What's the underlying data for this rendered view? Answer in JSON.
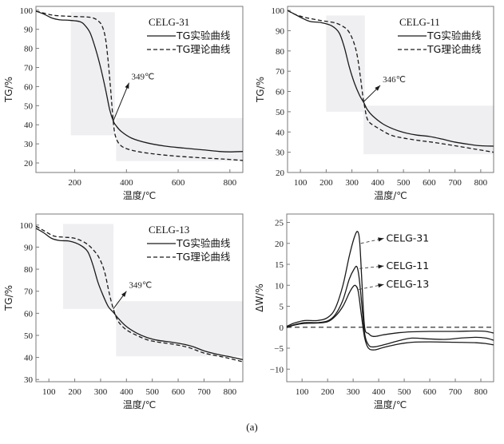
{
  "figure_caption": "(a)",
  "colors": {
    "line": "#1a1a1a",
    "shade": "#efeff1",
    "frame": "#7a7a7a"
  },
  "chart_data": [
    {
      "id": "celg31",
      "type": "line",
      "title": "CELG-31",
      "xlabel": "温度/℃",
      "ylabel": "TG/%",
      "xlim": [
        50,
        850
      ],
      "ylim": [
        15,
        102
      ],
      "xticks": [
        200,
        400,
        600,
        800
      ],
      "yticks": [
        20,
        30,
        40,
        50,
        60,
        70,
        80,
        90,
        100
      ],
      "grid": false,
      "legend": {
        "placement": "top-right",
        "entries": [
          "TG实验曲线",
          "TG理论曲线"
        ]
      },
      "shaded_regions": [
        {
          "x": [
            185,
            355
          ],
          "y": [
            34.5,
            99
          ]
        },
        {
          "x": [
            360,
            850
          ],
          "y": [
            21,
            43.5
          ]
        }
      ],
      "annotation": {
        "text": "349℃",
        "point": [
          349,
          42
        ],
        "arrow_to": [
          410,
          62
        ]
      },
      "series": [
        {
          "name": "TG实验曲线",
          "style": "solid",
          "x": [
            50,
            80,
            110,
            140,
            180,
            220,
            240,
            260,
            280,
            300,
            320,
            335,
            349,
            360,
            380,
            420,
            480,
            550,
            620,
            700,
            760,
            800,
            850
          ],
          "y": [
            99.5,
            98,
            96,
            95,
            94.7,
            94,
            92,
            88,
            80,
            70,
            58,
            48,
            42,
            39.5,
            36.5,
            33,
            30.5,
            28.8,
            27.8,
            26.8,
            26,
            25.8,
            26
          ]
        },
        {
          "name": "TG理论曲线",
          "style": "dashed",
          "x": [
            50,
            80,
            120,
            180,
            240,
            270,
            290,
            305,
            318,
            328,
            338,
            345,
            352,
            360,
            375,
            400,
            450,
            520,
            600,
            700,
            780,
            850
          ],
          "y": [
            99.5,
            98.5,
            97.3,
            96.8,
            96.5,
            96,
            94.5,
            92,
            86,
            75,
            60,
            48,
            38,
            33,
            29.5,
            27.5,
            25.8,
            24.5,
            23.5,
            22.6,
            22,
            21.3
          ]
        }
      ]
    },
    {
      "id": "celg11",
      "type": "line",
      "title": "CELG-11",
      "xlabel": "温度/℃",
      "ylabel": "TG/%",
      "xlim": [
        50,
        850
      ],
      "ylim": [
        20,
        102
      ],
      "xticks": [
        100,
        200,
        300,
        400,
        500,
        600,
        700,
        800
      ],
      "yticks": [
        20,
        30,
        40,
        50,
        60,
        70,
        80,
        90,
        100
      ],
      "grid": false,
      "legend": {
        "placement": "top-right",
        "entries": [
          "TG实验曲线",
          "TG理论曲线"
        ]
      },
      "shaded_regions": [
        {
          "x": [
            200,
            350
          ],
          "y": [
            50,
            97.5
          ]
        },
        {
          "x": [
            345,
            850
          ],
          "y": [
            29,
            53
          ]
        }
      ],
      "annotation": {
        "text": "346℃",
        "point": [
          346,
          55
        ],
        "arrow_to": [
          410,
          63
        ]
      },
      "series": [
        {
          "name": "TG实验曲线",
          "style": "solid",
          "x": [
            50,
            80,
            110,
            140,
            180,
            220,
            250,
            270,
            290,
            310,
            330,
            346,
            360,
            380,
            420,
            460,
            500,
            550,
            600,
            650,
            700,
            760,
            800,
            850
          ],
          "y": [
            100,
            98,
            96,
            94.5,
            94,
            92.5,
            89,
            82,
            72,
            64,
            58,
            54.5,
            51,
            48,
            44,
            41.5,
            39.8,
            38.5,
            37.8,
            36.5,
            35,
            33.8,
            33.2,
            33
          ]
        },
        {
          "name": "TG理论曲线",
          "style": "dashed",
          "x": [
            50,
            80,
            120,
            180,
            230,
            260,
            285,
            305,
            320,
            332,
            342,
            350,
            358,
            370,
            400,
            450,
            500,
            560,
            620,
            700,
            780,
            850
          ],
          "y": [
            100,
            98,
            96.5,
            95,
            94,
            92.5,
            90,
            85,
            78,
            68,
            58,
            52,
            47,
            44.5,
            42,
            38.5,
            37,
            35.8,
            34.8,
            33.2,
            31.5,
            30
          ]
        }
      ]
    },
    {
      "id": "celg13",
      "type": "line",
      "title": "CELG-13",
      "xlabel": "温度/℃",
      "ylabel": "TG/%",
      "xlim": [
        50,
        850
      ],
      "ylim": [
        29,
        105
      ],
      "xticks": [
        100,
        200,
        300,
        400,
        500,
        600,
        700,
        800
      ],
      "yticks": [
        30,
        40,
        50,
        60,
        70,
        80,
        90,
        100
      ],
      "grid": false,
      "legend": {
        "placement": "top-right",
        "entries": [
          "TG实验曲线",
          "TG理论曲线"
        ]
      },
      "shaded_regions": [
        {
          "x": [
            155,
            350
          ],
          "y": [
            62,
            100.5
          ]
        },
        {
          "x": [
            360,
            850
          ],
          "y": [
            40.5,
            65.5
          ]
        }
      ],
      "annotation": {
        "text": "349℃",
        "point": [
          349,
          62
        ],
        "arrow_to": [
          400,
          70
        ]
      },
      "series": [
        {
          "name": "TG实验曲线",
          "style": "solid",
          "x": [
            50,
            80,
            110,
            140,
            180,
            220,
            250,
            270,
            290,
            310,
            330,
            349,
            370,
            400,
            440,
            480,
            520,
            570,
            620,
            660,
            700,
            760,
            800,
            850
          ],
          "y": [
            98.5,
            96.5,
            94,
            93,
            92.7,
            91,
            88,
            82,
            74,
            68,
            63,
            60.5,
            57.5,
            54,
            51,
            49,
            47.8,
            47,
            46,
            44.8,
            43,
            41.2,
            40.3,
            39
          ]
        },
        {
          "name": "TG理论曲线",
          "style": "dashed",
          "x": [
            50,
            80,
            120,
            160,
            200,
            240,
            270,
            295,
            315,
            330,
            342,
            355,
            370,
            400,
            440,
            480,
            520,
            580,
            640,
            700,
            760,
            800,
            850
          ],
          "y": [
            99.5,
            97.5,
            95,
            94.5,
            94,
            92,
            89,
            85,
            79,
            71,
            65,
            60,
            56,
            52.5,
            50,
            48,
            47,
            46,
            44.5,
            42,
            40.5,
            39.5,
            38
          ]
        }
      ]
    },
    {
      "id": "delta",
      "type": "line",
      "title": "",
      "xlabel": "温度/℃",
      "ylabel": "ΔW/%",
      "xlim": [
        40,
        850
      ],
      "ylim": [
        -13,
        27
      ],
      "xticks": [
        100,
        200,
        300,
        400,
        500,
        600,
        700,
        800
      ],
      "yticks": [
        -10,
        -5,
        0,
        5,
        10,
        15,
        20,
        25
      ],
      "grid": false,
      "legend": {
        "placement": "inline-annotations",
        "entries": [
          "CELG-31",
          "CELG-11",
          "CELG-13"
        ]
      },
      "zero_reference": {
        "style": "dashed",
        "y": 0
      },
      "series": [
        {
          "name": "CELG-31",
          "style": "solid",
          "x": [
            40,
            70,
            110,
            160,
            200,
            230,
            260,
            285,
            305,
            318,
            326,
            335,
            345,
            360,
            380,
            420,
            480,
            530,
            600,
            700,
            780,
            820,
            850
          ],
          "y": [
            0.2,
            1.0,
            1.6,
            1.6,
            2.3,
            4.5,
            10,
            17,
            21.5,
            22.8,
            20,
            10,
            0,
            -1.5,
            -2.2,
            -1.8,
            -1.3,
            -1.1,
            -1.0,
            -1.0,
            -0.9,
            -1.0,
            -1.4
          ]
        },
        {
          "name": "CELG-11",
          "style": "solid",
          "x": [
            40,
            70,
            110,
            160,
            200,
            230,
            260,
            285,
            305,
            315,
            323,
            333,
            345,
            360,
            380,
            420,
            480,
            530,
            600,
            660,
            720,
            780,
            820,
            850
          ],
          "y": [
            0.0,
            0.6,
            1.1,
            1.1,
            1.5,
            3.0,
            6.5,
            11.5,
            14,
            14.4,
            12,
            6,
            -1.5,
            -4.2,
            -4.7,
            -4.2,
            -3.2,
            -2.6,
            -2.8,
            -2.9,
            -2.6,
            -2.4,
            -2.6,
            -3.1
          ]
        },
        {
          "name": "CELG-13",
          "style": "solid",
          "x": [
            40,
            70,
            110,
            160,
            200,
            230,
            260,
            285,
            300,
            310,
            320,
            332,
            345,
            360,
            385,
            420,
            480,
            530,
            600,
            700,
            780,
            820,
            850
          ],
          "y": [
            -0.1,
            0.5,
            0.9,
            1.0,
            1.3,
            2.6,
            5,
            8.2,
            9.7,
            9.9,
            8.5,
            3,
            -2.5,
            -5,
            -5.4,
            -4.8,
            -4.0,
            -3.6,
            -3.5,
            -3.6,
            -3.7,
            -3.9,
            -4.2
          ]
        }
      ],
      "labels": [
        {
          "text": "CELG-31",
          "from": [
            330,
            20
          ],
          "to": [
            420,
            21.2
          ]
        },
        {
          "text": "CELG-11",
          "from": [
            325,
            14
          ],
          "to": [
            420,
            14.6
          ]
        },
        {
          "text": "CELG-13",
          "from": [
            322,
            9
          ],
          "to": [
            420,
            10.2
          ]
        }
      ]
    }
  ]
}
